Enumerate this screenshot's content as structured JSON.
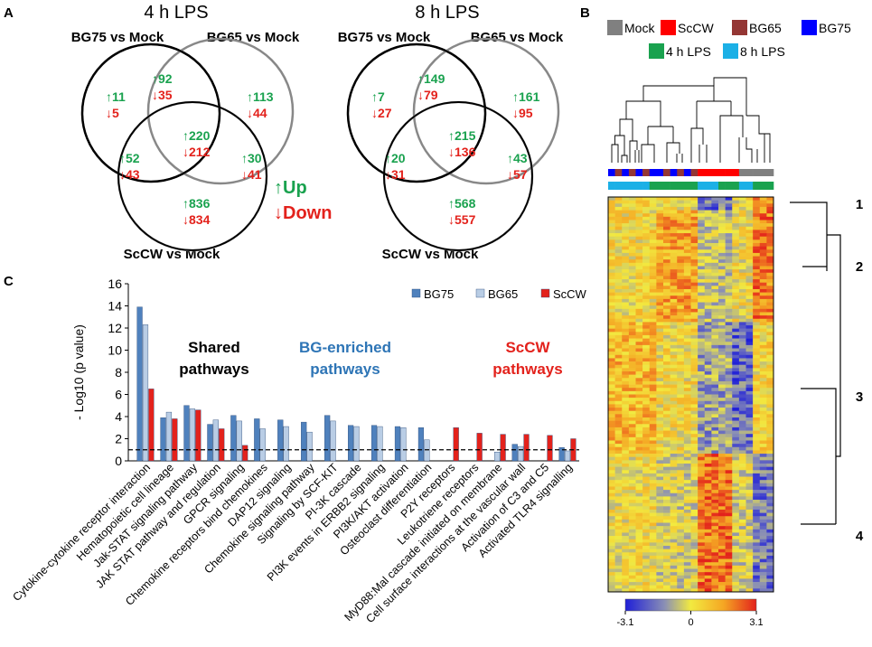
{
  "panels": {
    "a": "A",
    "b": "B",
    "c": "C"
  },
  "venn": {
    "symbols": {
      "up": "↑",
      "down": "↓"
    },
    "legend": {
      "up": "↑Up",
      "down": "↓Down"
    },
    "colors": {
      "up": "#1aa24f",
      "down": "#e3221c",
      "circle_dark": "#000000",
      "circle_gray": "#888888",
      "circle_light": "#b7b7b7"
    },
    "diagrams": [
      {
        "title": "4 h LPS",
        "labels": {
          "bg75": "BG75 vs Mock",
          "bg65": "BG65 vs Mock",
          "sccw": "ScCW vs Mock"
        },
        "regions": {
          "bg75_only": {
            "up": 11,
            "down": 5
          },
          "bg75_bg65": {
            "up": 92,
            "down": 35
          },
          "bg65_only": {
            "up": 113,
            "down": 44
          },
          "all_three": {
            "up": 220,
            "down": 212
          },
          "bg75_sccw": {
            "up": 52,
            "down": 43
          },
          "bg65_sccw": {
            "up": 30,
            "down": 41
          },
          "sccw_only": {
            "up": 836,
            "down": 834
          }
        }
      },
      {
        "title": "8 h LPS",
        "labels": {
          "bg75": "BG75 vs Mock",
          "bg65": "BG65 vs Mock",
          "sccw": "ScCW vs Mock"
        },
        "regions": {
          "bg75_only": {
            "up": 7,
            "down": 27
          },
          "bg75_bg65": {
            "up": 149,
            "down": 79
          },
          "bg65_only": {
            "up": 161,
            "down": 95
          },
          "all_three": {
            "up": 215,
            "down": 136
          },
          "bg75_sccw": {
            "up": 20,
            "down": 31
          },
          "bg65_sccw": {
            "up": 43,
            "down": 57
          },
          "sccw_only": {
            "up": 568,
            "down": 557
          }
        }
      }
    ]
  },
  "chart_data": {
    "type": "bar",
    "title": "",
    "xlabel": "",
    "ylabel": "- Log10 (p value)",
    "ylim": [
      0,
      16
    ],
    "yticks": [
      0,
      2,
      4,
      6,
      8,
      10,
      12,
      14,
      16
    ],
    "threshold": 1.0,
    "legend_position": "top-right",
    "categories": [
      "Cytokine-cytokine receptor interaction",
      "Hematopoietic cell lineage",
      "Jak-STAT signaling pathway",
      "JAK STAT pathway and regulation",
      "GPCR signaling",
      "Chemokine receptors bind chemokines",
      "DAP12 signaling",
      "Chemokine signaling pathway",
      "Signaling by SCF-KIT",
      "PI-3K cascade",
      "PI3K events in ERBB2 signaling",
      "PI3K/AKT activation",
      "Osteoclast differentiation",
      "P2Y receptors",
      "Leukotriene receptors",
      "MyD88:Mal cascade initiated on membrane",
      "Cell surface interactions at the vascular wall",
      "Activation of C3 and C5",
      "Activated TLR4 signalling"
    ],
    "series": [
      {
        "name": "BG75",
        "color": "#4f81bd",
        "values": [
          13.9,
          3.9,
          5.0,
          3.3,
          4.1,
          3.8,
          3.7,
          3.5,
          4.1,
          3.2,
          3.2,
          3.1,
          3.0,
          0,
          0,
          0,
          1.5,
          0,
          1.2
        ]
      },
      {
        "name": "BG65",
        "color": "#b9cde5",
        "values": [
          12.3,
          4.4,
          4.7,
          3.7,
          3.6,
          2.9,
          3.1,
          2.6,
          3.6,
          3.1,
          3.1,
          3.0,
          1.9,
          0,
          0,
          0.8,
          1.3,
          0,
          0.9
        ]
      },
      {
        "name": "ScCW",
        "color": "#e3221c",
        "values": [
          6.5,
          3.8,
          4.6,
          2.9,
          1.4,
          0,
          0,
          0,
          0,
          0,
          0,
          0,
          0,
          3.0,
          2.5,
          2.4,
          2.4,
          2.3,
          2.0
        ]
      }
    ],
    "annotations": [
      {
        "line1": "Shared",
        "line2": "pathways",
        "color": "#000000"
      },
      {
        "line1": "BG-enriched",
        "line2": "pathways",
        "color": "#2e75b6"
      },
      {
        "line1": "ScCW",
        "line2": "pathways",
        "color": "#e3221c"
      }
    ]
  },
  "heatmap": {
    "legend": [
      {
        "label": "Mock",
        "color": "#808080"
      },
      {
        "label": "ScCW",
        "color": "#ff0000"
      },
      {
        "label": "BG65",
        "color": "#943634"
      },
      {
        "label": "BG75",
        "color": "#0000ff"
      },
      {
        "label": "4 h LPS",
        "color": "#1aa24f"
      },
      {
        "label": "8 h LPS",
        "color": "#1cb0e6"
      }
    ],
    "clusters": [
      "1",
      "2",
      "3",
      "4"
    ],
    "colorbar": {
      "min": "-3.1",
      "mid": "0",
      "max": "3.1"
    }
  }
}
